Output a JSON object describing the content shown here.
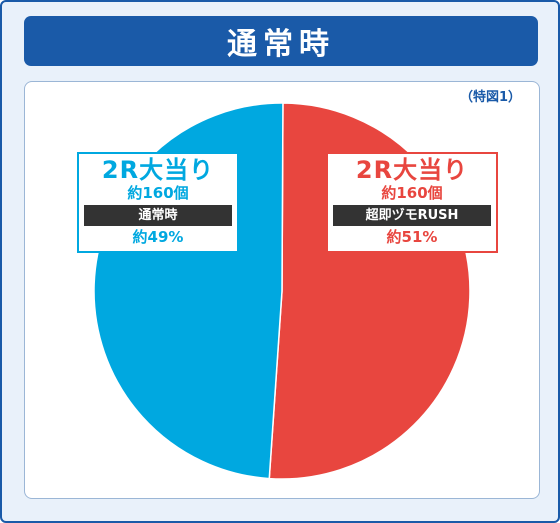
{
  "title": "通常時",
  "note": "（特図1）",
  "colors": {
    "left": "#00a8e0",
    "right": "#e8463f",
    "frame": "#1a5aa8"
  },
  "left_label": {
    "title": "2R大当り",
    "count": "約160個",
    "tag": "通常時",
    "percent": "約49%"
  },
  "right_label": {
    "title": "2R大当り",
    "count": "約160個",
    "tag": "超即ヅモRUSH",
    "percent": "約51%"
  },
  "chart_data": {
    "type": "pie",
    "slices": [
      {
        "label": "超即ヅモRUSH",
        "value": 51,
        "color": "#e8463f"
      },
      {
        "label": "通常時",
        "value": 49,
        "color": "#00a8e0"
      }
    ]
  }
}
